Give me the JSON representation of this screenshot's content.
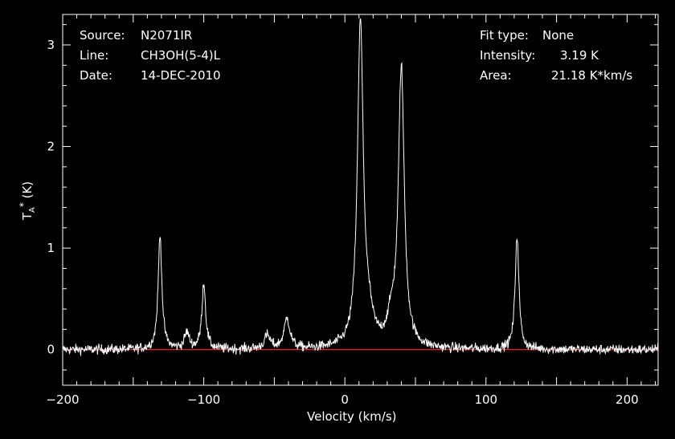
{
  "header": {
    "left": [
      {
        "key": "Source:",
        "value": "N2071IR"
      },
      {
        "key": "Line:",
        "value": "CH3OH(5-4)L"
      },
      {
        "key": "Date:",
        "value": "14-DEC-2010"
      }
    ],
    "right": [
      {
        "key": "Fit type:",
        "value": "None"
      },
      {
        "key": "Intensity:",
        "value": "3.19 K"
      },
      {
        "key": "Area:",
        "value": "21.18 K*km/s"
      }
    ]
  },
  "colors": {
    "background": "#000000",
    "axes": "#ffffff",
    "spectrum": "#ffffff",
    "baseline": "#ff2a2a"
  },
  "chart_data": {
    "type": "line",
    "xlabel": "Velocity (km/s)",
    "ylabel": "T_A* (K)",
    "xlim": [
      -200,
      222
    ],
    "ylim": [
      -0.35,
      3.3
    ],
    "xticks": [
      -200,
      -100,
      0,
      100,
      200
    ],
    "yticks": [
      0,
      1,
      2,
      3
    ],
    "baseline": 0,
    "noise_rms": 0.035,
    "peaks": [
      {
        "v": -131,
        "height": 1.12,
        "width": 1.6
      },
      {
        "v": -112,
        "height": 0.16,
        "width": 2.0
      },
      {
        "v": -100,
        "height": 0.65,
        "width": 1.6
      },
      {
        "v": -55,
        "height": 0.13,
        "width": 2.5
      },
      {
        "v": -41,
        "height": 0.3,
        "width": 2.5
      },
      {
        "v": 11,
        "height": 3.19,
        "width": 2.5
      },
      {
        "v": 17,
        "height": 0.2,
        "width": 3.5
      },
      {
        "v": 33,
        "height": 0.22,
        "width": 3.5
      },
      {
        "v": 40,
        "height": 2.75,
        "width": 2.5
      },
      {
        "v": 122,
        "height": 1.12,
        "width": 1.6
      }
    ],
    "series": [
      {
        "values": []
      }
    ]
  }
}
